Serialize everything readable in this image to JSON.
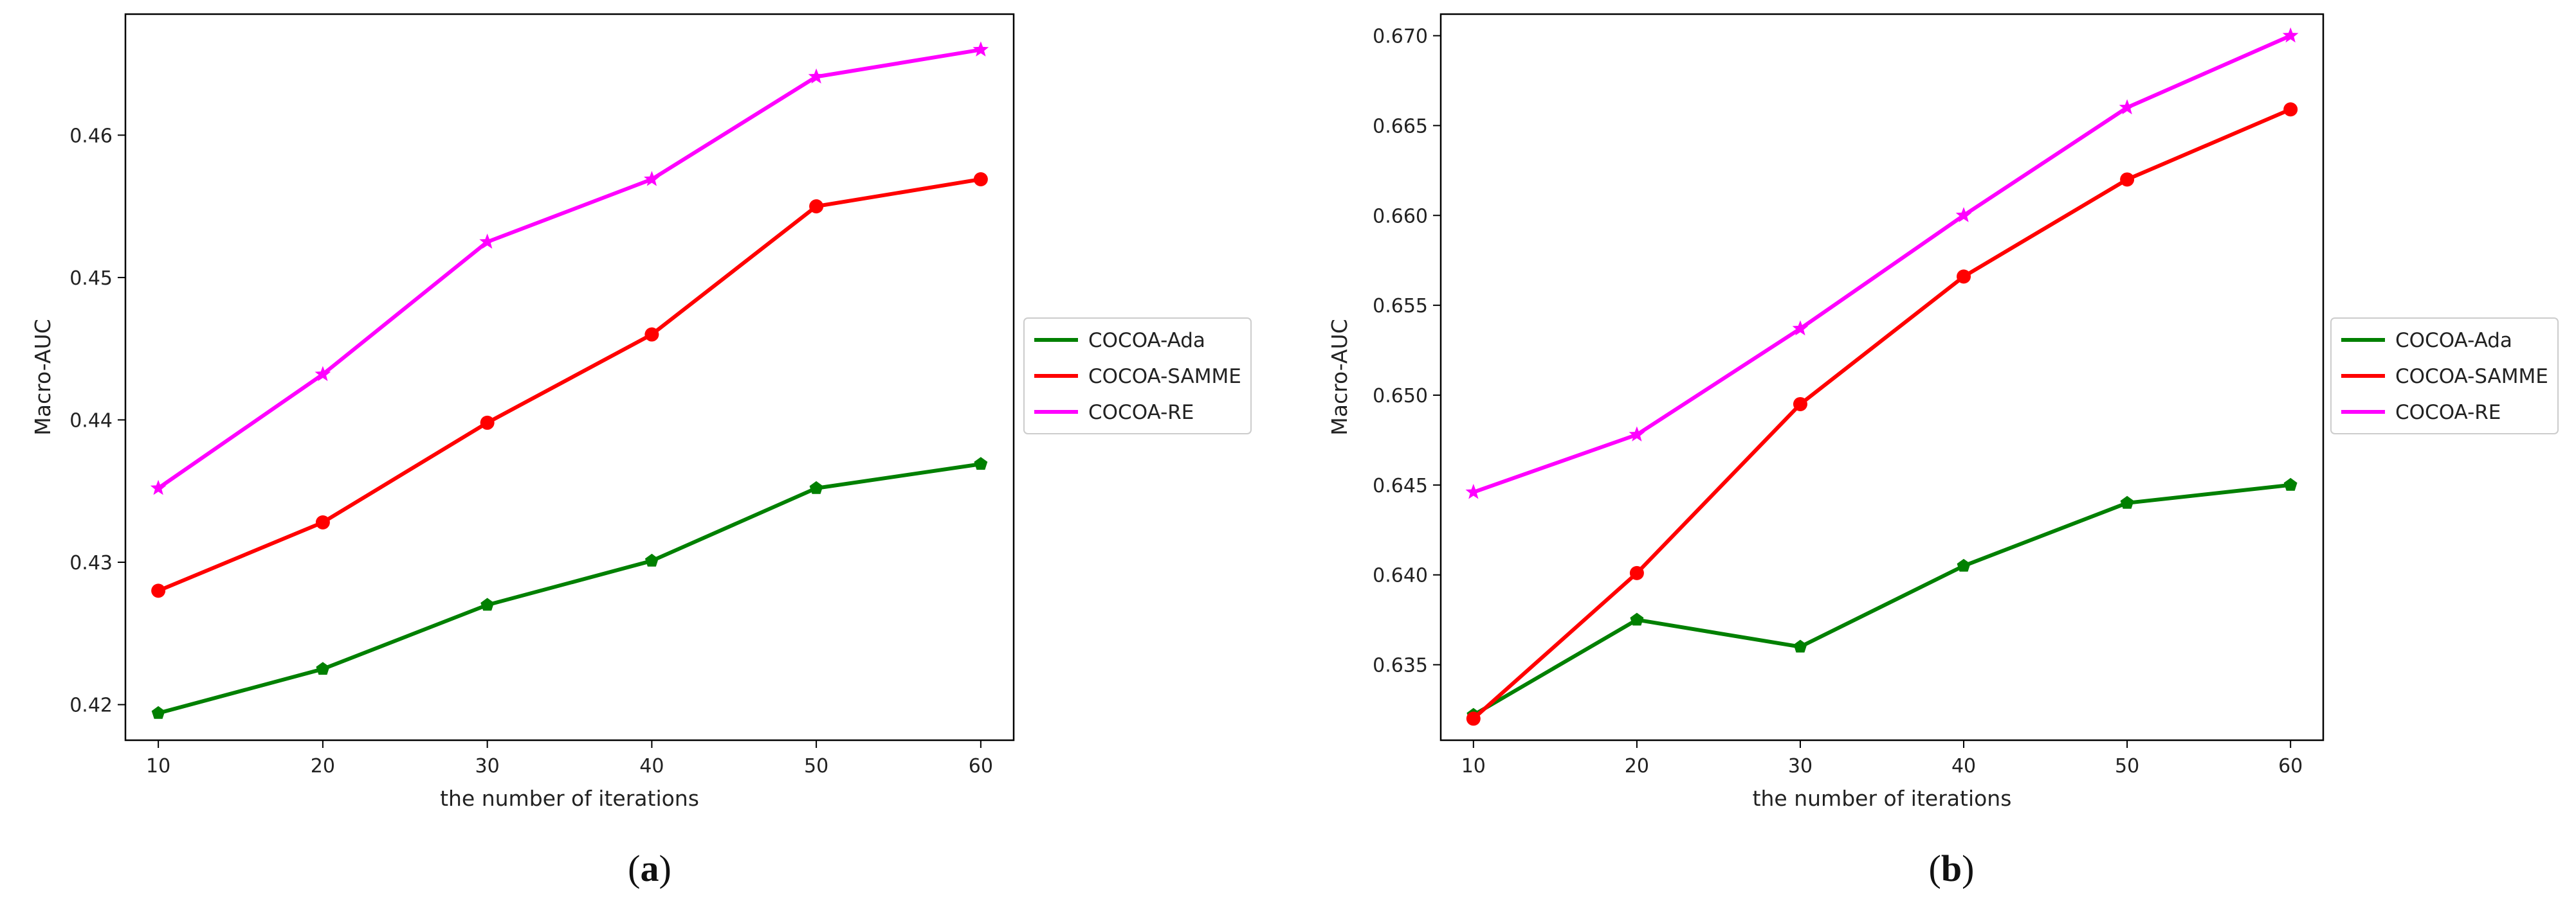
{
  "chart_data": [
    {
      "type": "line",
      "panel_label": "a",
      "title": "",
      "xlabel": "the number of iterations",
      "ylabel": "Macro-AUC",
      "x": [
        10,
        20,
        30,
        40,
        50,
        60
      ],
      "xlim": [
        8,
        62
      ],
      "ylim": [
        0.4175,
        0.4685
      ],
      "x_ticks": [
        "10",
        "20",
        "30",
        "40",
        "50",
        "60"
      ],
      "y_tick_values": [
        0.42,
        0.43,
        0.44,
        0.45,
        0.46
      ],
      "y_ticks": [
        "0.42",
        "0.43",
        "0.44",
        "0.45",
        "0.46"
      ],
      "legend_position": "right-outside",
      "grid": false,
      "series": [
        {
          "name": "COCOA-Ada",
          "color": "#008000",
          "marker": "pentagon",
          "values": [
            0.4194,
            0.4225,
            0.427,
            0.4301,
            0.4352,
            0.4369
          ]
        },
        {
          "name": "COCOA-SAMME",
          "color": "#ff0000",
          "marker": "circle",
          "values": [
            0.428,
            0.4328,
            0.4398,
            0.446,
            0.455,
            0.4569
          ]
        },
        {
          "name": "COCOA-RE",
          "color": "#ff00ff",
          "marker": "star",
          "values": [
            0.4352,
            0.4432,
            0.4525,
            0.4569,
            0.4641,
            0.466
          ]
        }
      ]
    },
    {
      "type": "line",
      "panel_label": "b",
      "title": "",
      "xlabel": "the number of iterations",
      "ylabel": "Macro-AUC",
      "x": [
        10,
        20,
        30,
        40,
        50,
        60
      ],
      "xlim": [
        8,
        62
      ],
      "ylim": [
        0.6308,
        0.6712
      ],
      "x_ticks": [
        "10",
        "20",
        "30",
        "40",
        "50",
        "60"
      ],
      "y_tick_values": [
        0.635,
        0.64,
        0.645,
        0.65,
        0.655,
        0.66,
        0.665,
        0.67
      ],
      "y_ticks": [
        "0.635",
        "0.640",
        "0.645",
        "0.650",
        "0.655",
        "0.660",
        "0.665",
        "0.670"
      ],
      "legend_position": "right-outside",
      "grid": false,
      "series": [
        {
          "name": "COCOA-Ada",
          "color": "#008000",
          "marker": "pentagon",
          "values": [
            0.6322,
            0.6375,
            0.636,
            0.6405,
            0.644,
            0.645
          ]
        },
        {
          "name": "COCOA-SAMME",
          "color": "#ff0000",
          "marker": "circle",
          "values": [
            0.632,
            0.6401,
            0.6495,
            0.6566,
            0.662,
            0.6659
          ]
        },
        {
          "name": "COCOA-RE",
          "color": "#ff00ff",
          "marker": "star",
          "values": [
            0.6446,
            0.6478,
            0.6537,
            0.66,
            0.666,
            0.67
          ]
        }
      ]
    }
  ]
}
